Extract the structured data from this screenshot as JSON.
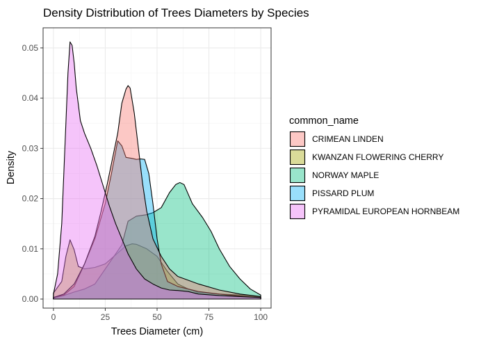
{
  "chart_data": {
    "type": "area",
    "title": "Density Distribution of Trees Diameters by Species",
    "xlabel": "Trees Diameter (cm)",
    "ylabel": "Density",
    "xlim": [
      -5,
      105
    ],
    "ylim": [
      -0.0018,
      0.054
    ],
    "x_ticks": [
      0,
      25,
      50,
      75,
      100
    ],
    "x_tick_labels": [
      "0",
      "25",
      "50",
      "75",
      "100"
    ],
    "y_ticks": [
      0,
      0.01,
      0.02,
      0.03,
      0.04,
      0.05
    ],
    "y_tick_labels": [
      "0.00",
      "0.01",
      "0.02",
      "0.03",
      "0.04",
      "0.05"
    ],
    "grid": true,
    "legend_title": "common_name",
    "legend_position": "right",
    "series": [
      {
        "name": "KWANZAN FLOWERING CHERRY",
        "color": "#a3a500",
        "points": [
          [
            0,
            0.0012
          ],
          [
            4,
            0.0035
          ],
          [
            6,
            0.0085
          ],
          [
            8,
            0.0118
          ],
          [
            10,
            0.0098
          ],
          [
            12,
            0.0065
          ],
          [
            15,
            0.006
          ],
          [
            20,
            0.0063
          ],
          [
            25,
            0.007
          ],
          [
            30,
            0.0088
          ],
          [
            35,
            0.0106
          ],
          [
            38,
            0.011
          ],
          [
            40,
            0.0109
          ],
          [
            45,
            0.01
          ],
          [
            50,
            0.0085
          ],
          [
            55,
            0.0055
          ],
          [
            60,
            0.003
          ],
          [
            65,
            0.002
          ],
          [
            70,
            0.0013
          ],
          [
            80,
            0.001
          ],
          [
            90,
            0.0008
          ],
          [
            95,
            0.0007
          ],
          [
            100,
            0.0004
          ]
        ]
      },
      {
        "name": "NORWAY MAPLE",
        "color": "#00bf7d",
        "points": [
          [
            0,
            0.0002
          ],
          [
            5,
            0.0007
          ],
          [
            10,
            0.0014
          ],
          [
            15,
            0.002
          ],
          [
            20,
            0.003
          ],
          [
            25,
            0.006
          ],
          [
            30,
            0.009
          ],
          [
            33,
            0.0108
          ],
          [
            36,
            0.0155
          ],
          [
            40,
            0.0165
          ],
          [
            45,
            0.0168
          ],
          [
            48,
            0.0172
          ],
          [
            52,
            0.0182
          ],
          [
            56,
            0.0212
          ],
          [
            59,
            0.0228
          ],
          [
            61,
            0.0232
          ],
          [
            63,
            0.0228
          ],
          [
            67,
            0.019
          ],
          [
            72,
            0.0162
          ],
          [
            76,
            0.0135
          ],
          [
            80,
            0.01
          ],
          [
            85,
            0.0065
          ],
          [
            90,
            0.004
          ],
          [
            95,
            0.002
          ],
          [
            100,
            0.0008
          ]
        ]
      },
      {
        "name": "PISSARD PLUM",
        "color": "#00b0f6",
        "points": [
          [
            0,
            0.0003
          ],
          [
            5,
            0.0008
          ],
          [
            10,
            0.0025
          ],
          [
            15,
            0.007
          ],
          [
            20,
            0.012
          ],
          [
            25,
            0.019
          ],
          [
            28,
            0.025
          ],
          [
            31,
            0.0315
          ],
          [
            33,
            0.0305
          ],
          [
            35,
            0.0282
          ],
          [
            38,
            0.028
          ],
          [
            40,
            0.0278
          ],
          [
            42,
            0.0279
          ],
          [
            44,
            0.0278
          ],
          [
            46,
            0.025
          ],
          [
            48,
            0.019
          ],
          [
            50,
            0.012
          ],
          [
            52,
            0.007
          ],
          [
            55,
            0.0035
          ],
          [
            60,
            0.0025
          ],
          [
            65,
            0.002
          ],
          [
            70,
            0.0015
          ],
          [
            80,
            0.001
          ],
          [
            90,
            0.0006
          ],
          [
            100,
            0.0003
          ]
        ]
      },
      {
        "name": "CRIMEAN LINDEN",
        "color": "#f8766d",
        "points": [
          [
            0,
            0.0003
          ],
          [
            5,
            0.001
          ],
          [
            10,
            0.003
          ],
          [
            15,
            0.007
          ],
          [
            20,
            0.0125
          ],
          [
            23,
            0.0175
          ],
          [
            26,
            0.023
          ],
          [
            29,
            0.029
          ],
          [
            31,
            0.033
          ],
          [
            32,
            0.036
          ],
          [
            33,
            0.039
          ],
          [
            35,
            0.0418
          ],
          [
            36,
            0.0425
          ],
          [
            37,
            0.042
          ],
          [
            39,
            0.037
          ],
          [
            41,
            0.03
          ],
          [
            43,
            0.023
          ],
          [
            45,
            0.0175
          ],
          [
            48,
            0.012
          ],
          [
            52,
            0.0085
          ],
          [
            56,
            0.006
          ],
          [
            60,
            0.0045
          ],
          [
            70,
            0.003
          ],
          [
            80,
            0.0018
          ],
          [
            90,
            0.001
          ],
          [
            100,
            0.0005
          ]
        ]
      },
      {
        "name": "PYRAMIDAL EUROPEAN HORNBEAM",
        "color": "#e76bf3",
        "points": [
          [
            0,
            0.001
          ],
          [
            2,
            0.005
          ],
          [
            4,
            0.015
          ],
          [
            6,
            0.035
          ],
          [
            7,
            0.045
          ],
          [
            8,
            0.0512
          ],
          [
            9,
            0.0505
          ],
          [
            10,
            0.047
          ],
          [
            11,
            0.042
          ],
          [
            13,
            0.0355
          ],
          [
            15,
            0.033
          ],
          [
            18,
            0.03
          ],
          [
            21,
            0.0265
          ],
          [
            24,
            0.0225
          ],
          [
            27,
            0.0185
          ],
          [
            30,
            0.015
          ],
          [
            33,
            0.012
          ],
          [
            36,
            0.009
          ],
          [
            40,
            0.006
          ],
          [
            44,
            0.004
          ],
          [
            48,
            0.003
          ],
          [
            52,
            0.0022
          ],
          [
            56,
            0.0018
          ],
          [
            60,
            0.0017
          ],
          [
            65,
            0.0015
          ],
          [
            70,
            0.001
          ],
          [
            80,
            0.0007
          ],
          [
            90,
            0.0005
          ],
          [
            100,
            0.0003
          ]
        ]
      }
    ],
    "legend_order": [
      "CRIMEAN LINDEN",
      "KWANZAN FLOWERING CHERRY",
      "NORWAY MAPLE",
      "PISSARD PLUM",
      "PYRAMIDAL EUROPEAN HORNBEAM"
    ]
  }
}
